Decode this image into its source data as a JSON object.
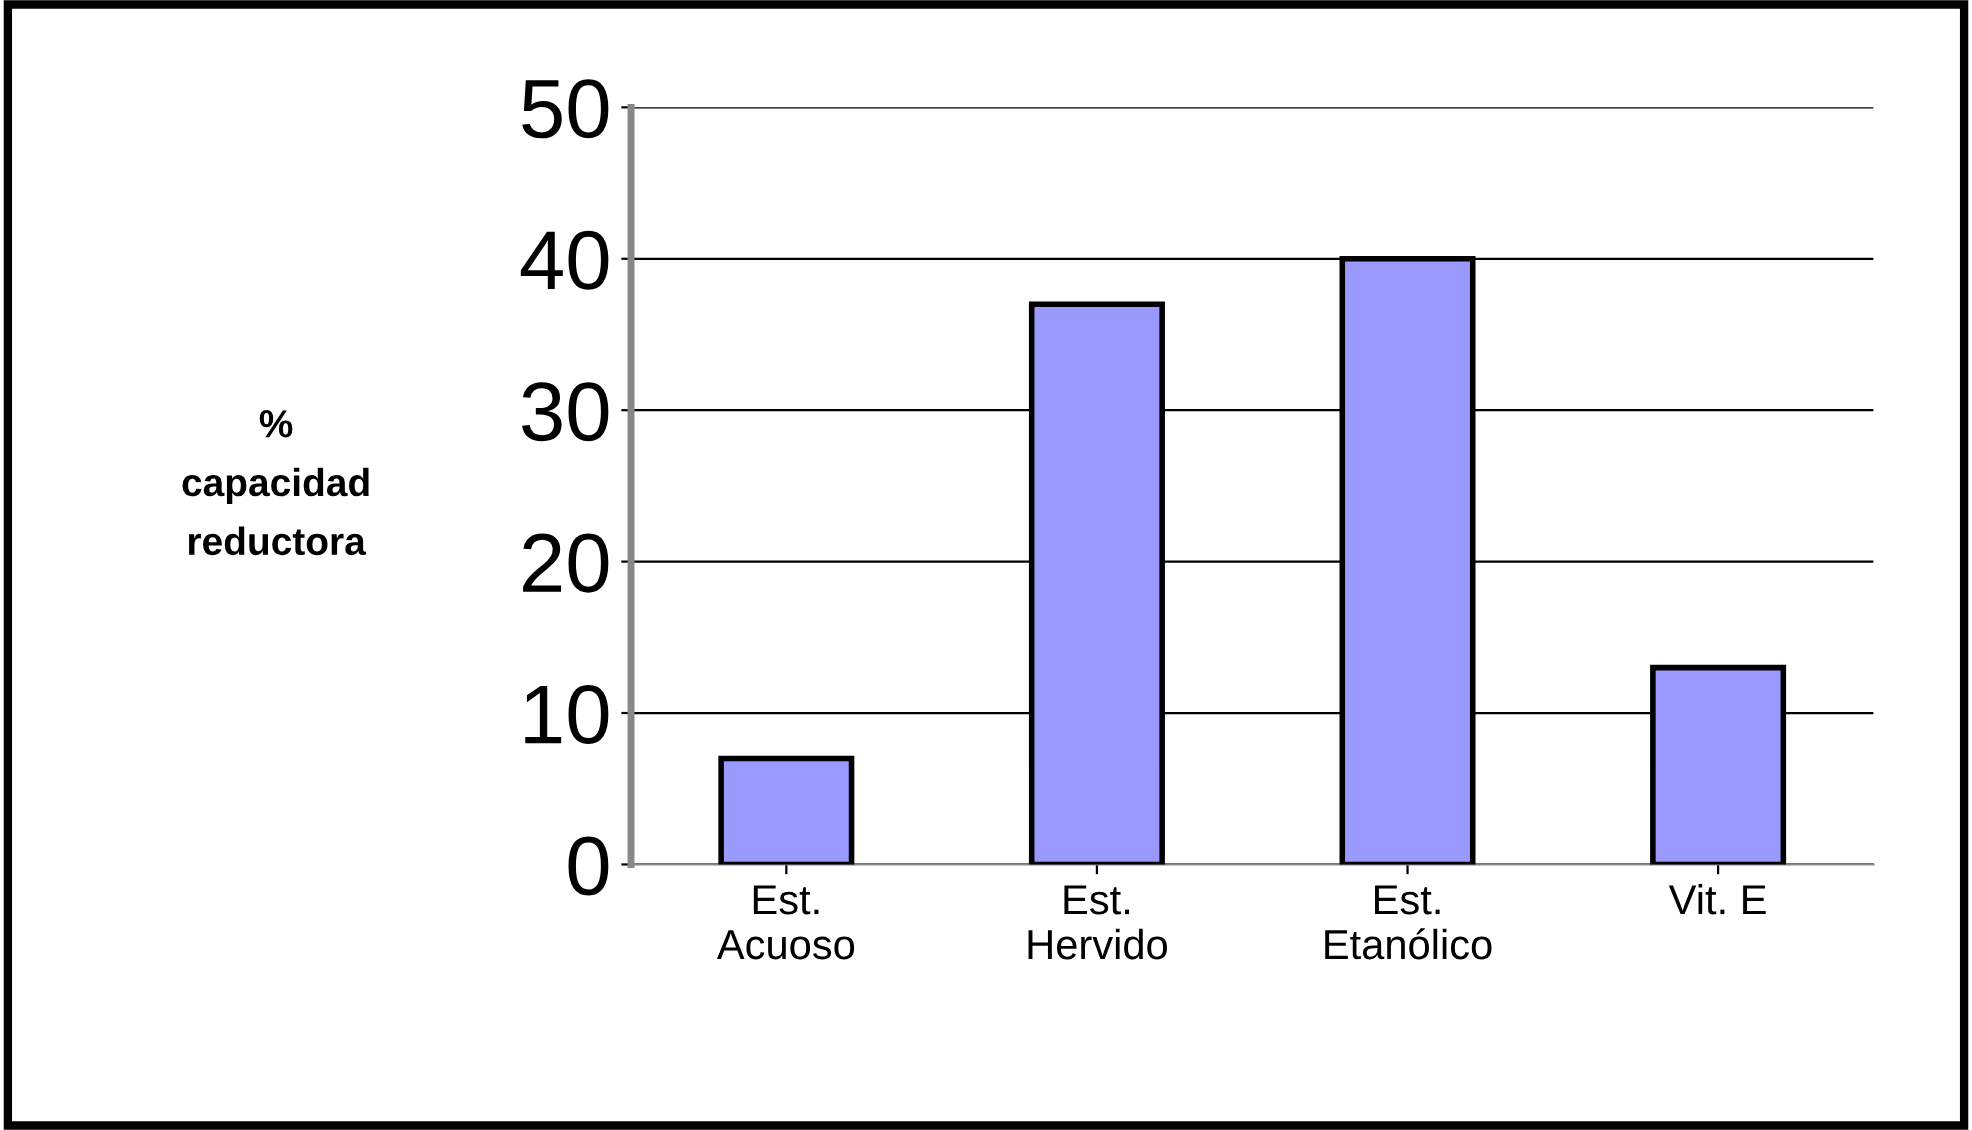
{
  "chart_data": {
    "type": "bar",
    "ylabel": "%\ncapacidad\nreductora",
    "categories": [
      "Est.\nAcuoso",
      "Est.\nHervido",
      "Est.\nEtanólico",
      "Vit. E"
    ],
    "values": [
      7,
      37,
      40,
      13
    ],
    "color": "#9999ff",
    "ylim": [
      0,
      50
    ],
    "yticks": [
      0,
      10,
      20,
      30,
      40,
      50
    ],
    "grid": "y"
  }
}
